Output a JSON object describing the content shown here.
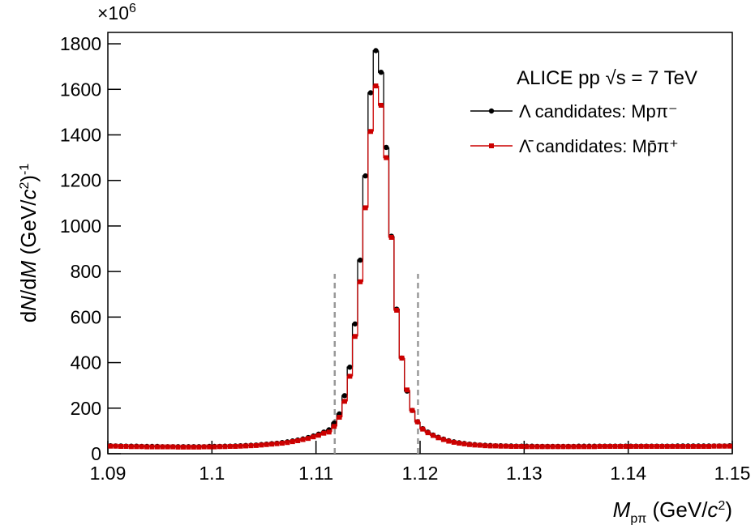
{
  "chart_data": {
    "type": "histogram",
    "multiplier": {
      "base": "×10",
      "exponent": "6"
    },
    "y_label_parts": [
      {
        "text": "d"
      },
      {
        "text": "N",
        "italic": true
      },
      {
        "text": "/d"
      },
      {
        "text": "M",
        "italic": true
      },
      {
        "text": " (GeV/"
      },
      {
        "text": "c",
        "italic": true
      },
      {
        "text": "2",
        "sup": true
      },
      {
        "text": ")"
      },
      {
        "text": "-1",
        "sup": true
      }
    ],
    "x_label_parts": [
      {
        "text": "M",
        "italic": true
      },
      {
        "text": "pπ",
        "sub": true
      },
      {
        "text": " (GeV/"
      },
      {
        "text": "c",
        "italic": true
      },
      {
        "text": "2",
        "sup": true
      },
      {
        "text": ")"
      }
    ],
    "annotation": "ALICE pp √s = 7 TeV",
    "xlim": [
      1.09,
      1.15
    ],
    "xticks": [
      1.09,
      1.1,
      1.11,
      1.12,
      1.13,
      1.14,
      1.15
    ],
    "ylim": [
      0,
      1850
    ],
    "yticks": [
      0,
      200,
      400,
      600,
      800,
      1000,
      1200,
      1400,
      1600,
      1800
    ],
    "vlines": [
      1.1118,
      1.1198
    ],
    "vline_top": 790,
    "bins": [
      1.09,
      1.0905,
      1.091,
      1.0915,
      1.092,
      1.0925,
      1.093,
      1.0935,
      1.094,
      1.0945,
      1.095,
      1.0955,
      1.096,
      1.0965,
      1.097,
      1.0975,
      1.098,
      1.0985,
      1.099,
      1.0995,
      1.1,
      1.1005,
      1.101,
      1.1015,
      1.102,
      1.1025,
      1.103,
      1.1035,
      1.104,
      1.1045,
      1.105,
      1.1055,
      1.106,
      1.1065,
      1.107,
      1.1075,
      1.108,
      1.1085,
      1.109,
      1.1095,
      1.11,
      1.1105,
      1.111,
      1.1115,
      1.112,
      1.1125,
      1.113,
      1.1135,
      1.114,
      1.1145,
      1.115,
      1.1155,
      1.116,
      1.1165,
      1.117,
      1.1175,
      1.118,
      1.1185,
      1.119,
      1.1195,
      1.12,
      1.1205,
      1.121,
      1.1215,
      1.122,
      1.1225,
      1.123,
      1.1235,
      1.124,
      1.1245,
      1.125,
      1.1255,
      1.126,
      1.1265,
      1.127,
      1.1275,
      1.128,
      1.1285,
      1.129,
      1.1295,
      1.13,
      1.1305,
      1.131,
      1.1315,
      1.132,
      1.1325,
      1.133,
      1.1335,
      1.134,
      1.1345,
      1.135,
      1.1355,
      1.136,
      1.1365,
      1.137,
      1.1375,
      1.138,
      1.1385,
      1.139,
      1.1395,
      1.14,
      1.1405,
      1.141,
      1.1415,
      1.142,
      1.1425,
      1.143,
      1.1435,
      1.144,
      1.1445,
      1.145,
      1.1455,
      1.146,
      1.1465,
      1.147,
      1.1475,
      1.148,
      1.1485,
      1.149,
      1.1495,
      1.15
    ],
    "series": [
      {
        "name": "Λ candidates: Mpπ⁻",
        "color": "#000000",
        "marker": "circle",
        "values": [
          35,
          34,
          34,
          33,
          33,
          33,
          32,
          32,
          32,
          32,
          31,
          31,
          31,
          31,
          31,
          31,
          31,
          31,
          31,
          32,
          32,
          32,
          33,
          33,
          34,
          35,
          36,
          37,
          38,
          40,
          42,
          44,
          46,
          49,
          52,
          56,
          60,
          65,
          71,
          78,
          86,
          95,
          105,
          135,
          175,
          255,
          380,
          570,
          850,
          1220,
          1585,
          1770,
          1675,
          1345,
          955,
          635,
          420,
          275,
          190,
          140,
          110,
          95,
          82,
          72,
          64,
          57,
          52,
          48,
          45,
          42,
          40,
          38,
          37,
          36,
          35,
          35,
          34,
          34,
          33,
          33,
          33,
          33,
          32,
          32,
          32,
          32,
          32,
          32,
          32,
          32,
          33,
          33,
          33,
          33,
          33,
          33,
          33,
          33,
          33,
          33,
          33,
          33,
          33,
          33,
          33,
          33,
          33,
          33,
          33,
          34,
          34,
          34,
          34,
          34,
          34,
          34,
          34,
          34,
          34,
          35
        ]
      },
      {
        "name": "Λ̄ candidates: Mp̄π⁺",
        "color": "#cc0000",
        "marker": "square",
        "values": [
          33,
          33,
          32,
          32,
          31,
          31,
          31,
          30,
          30,
          30,
          30,
          30,
          30,
          29,
          29,
          29,
          29,
          29,
          30,
          30,
          30,
          31,
          31,
          32,
          32,
          33,
          34,
          35,
          36,
          38,
          40,
          42,
          44,
          46,
          49,
          53,
          57,
          62,
          67,
          74,
          81,
          90,
          95,
          120,
          160,
          230,
          340,
          515,
          755,
          1080,
          1415,
          1615,
          1530,
          1300,
          950,
          630,
          420,
          280,
          190,
          140,
          108,
          92,
          80,
          70,
          62,
          55,
          50,
          46,
          43,
          40,
          38,
          37,
          35,
          34,
          34,
          33,
          33,
          32,
          32,
          32,
          31,
          31,
          31,
          31,
          31,
          31,
          31,
          31,
          31,
          31,
          31,
          31,
          31,
          31,
          32,
          32,
          32,
          32,
          32,
          32,
          32,
          32,
          32,
          32,
          32,
          32,
          32,
          32,
          32,
          32,
          32,
          32,
          32,
          32,
          32,
          32,
          33,
          33,
          33,
          33
        ]
      }
    ]
  }
}
